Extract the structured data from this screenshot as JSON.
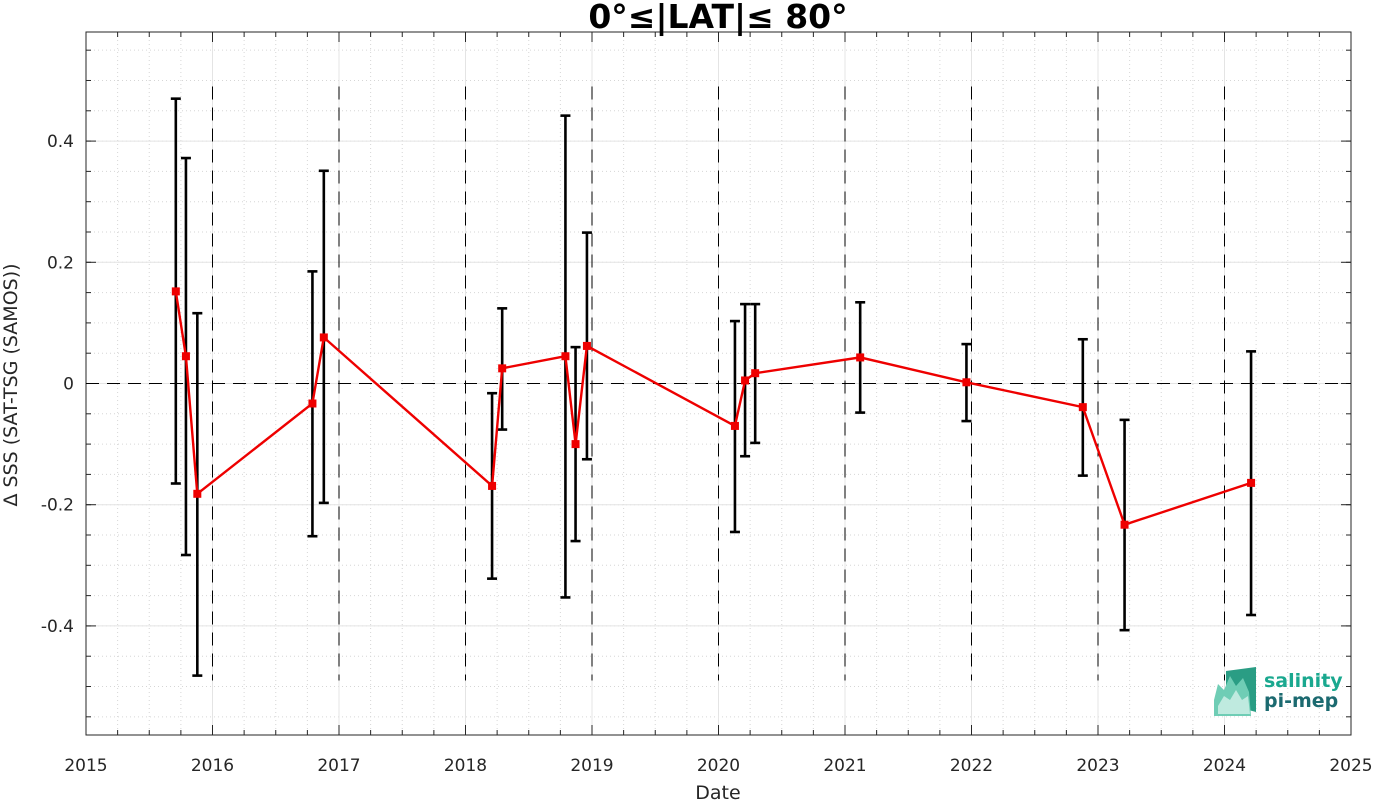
{
  "chart_data": {
    "type": "line",
    "title": "0°≤|LAT|≤ 80°",
    "xlabel": "Date",
    "ylabel": "Δ SSS (SAT-TSG (SAMOS))",
    "xlim": [
      2015,
      2025
    ],
    "ylim": [
      -0.58,
      0.58
    ],
    "xticks": [
      2015,
      2016,
      2017,
      2018,
      2019,
      2020,
      2021,
      2022,
      2023,
      2024,
      2025
    ],
    "xtick_labels": [
      "2015",
      "2016",
      "2017",
      "2018",
      "2019",
      "2020",
      "2021",
      "2022",
      "2023",
      "2024",
      "2025"
    ],
    "yticks": [
      -0.4,
      -0.2,
      0,
      0.2,
      0.4
    ],
    "ytick_labels": [
      "-0.4",
      "-0.2",
      "0",
      "0.2",
      "0.4"
    ],
    "grid": true,
    "zero_line": true,
    "year_separators": [
      2016,
      2017,
      2018,
      2019,
      2020,
      2021,
      2022,
      2023,
      2024
    ],
    "series": [
      {
        "color": "#ee0000",
        "marker": "square",
        "points": [
          {
            "x": 2015.71,
            "y": 0.152,
            "lo": -0.165,
            "hi": 0.47
          },
          {
            "x": 2015.79,
            "y": 0.045,
            "lo": -0.283,
            "hi": 0.372
          },
          {
            "x": 2015.88,
            "y": -0.182,
            "lo": -0.482,
            "hi": 0.116
          },
          {
            "x": 2016.79,
            "y": -0.033,
            "lo": -0.252,
            "hi": 0.185
          },
          {
            "x": 2016.88,
            "y": 0.076,
            "lo": -0.197,
            "hi": 0.351
          },
          {
            "x": 2018.21,
            "y": -0.169,
            "lo": -0.322,
            "hi": -0.016
          },
          {
            "x": 2018.29,
            "y": 0.025,
            "lo": -0.076,
            "hi": 0.124
          },
          {
            "x": 2018.79,
            "y": 0.045,
            "lo": -0.353,
            "hi": 0.442
          },
          {
            "x": 2018.87,
            "y": -0.1,
            "lo": -0.26,
            "hi": 0.06
          },
          {
            "x": 2018.96,
            "y": 0.062,
            "lo": -0.125,
            "hi": 0.249
          },
          {
            "x": 2020.13,
            "y": -0.07,
            "lo": -0.245,
            "hi": 0.103
          },
          {
            "x": 2020.21,
            "y": 0.005,
            "lo": -0.12,
            "hi": 0.131
          },
          {
            "x": 2020.29,
            "y": 0.017,
            "lo": -0.098,
            "hi": 0.131
          },
          {
            "x": 2021.12,
            "y": 0.043,
            "lo": -0.048,
            "hi": 0.134
          },
          {
            "x": 2021.96,
            "y": 0.002,
            "lo": -0.062,
            "hi": 0.065
          },
          {
            "x": 2022.88,
            "y": -0.039,
            "lo": -0.152,
            "hi": 0.073
          },
          {
            "x": 2023.21,
            "y": -0.233,
            "lo": -0.407,
            "hi": -0.06
          },
          {
            "x": 2024.21,
            "y": -0.164,
            "lo": -0.382,
            "hi": 0.053
          }
        ]
      }
    ]
  },
  "logo": {
    "line1": "salinity",
    "line2": "pi-mep",
    "color1": "#1aa88f",
    "color2": "#1c6a70"
  }
}
